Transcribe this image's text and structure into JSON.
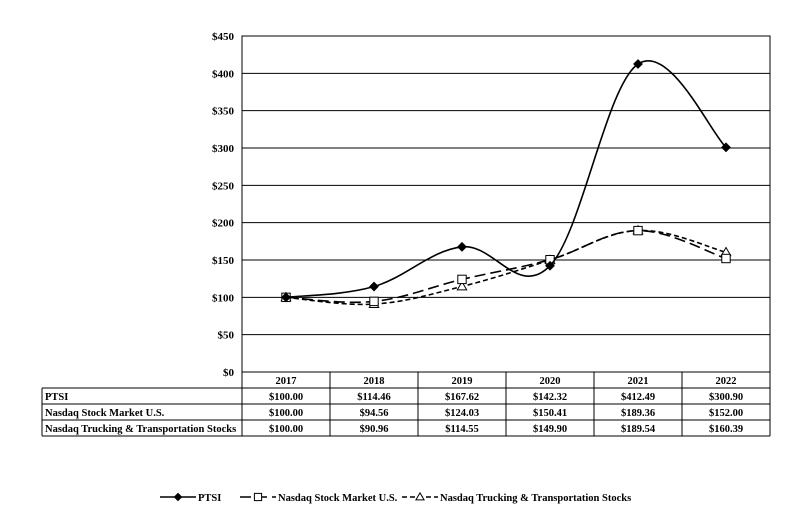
{
  "chart_data": {
    "type": "line",
    "categories": [
      "2017",
      "2018",
      "2019",
      "2020",
      "2021",
      "2022"
    ],
    "series": [
      {
        "name": "PTSI",
        "values": [
          100.0,
          114.46,
          167.62,
          142.32,
          412.49,
          300.9
        ],
        "labels": [
          "$100.00",
          "$114.46",
          "$167.62",
          "$142.32",
          "$412.49",
          "$300.90"
        ],
        "marker": "filled-diamond",
        "dash": "solid"
      },
      {
        "name": "Nasdaq Stock Market U.S.",
        "values": [
          100.0,
          94.56,
          124.03,
          150.41,
          189.36,
          152.0
        ],
        "labels": [
          "$100.00",
          "$94.56",
          "$124.03",
          "$150.41",
          "$189.36",
          "$152.00"
        ],
        "marker": "open-square",
        "dash": "long-dash"
      },
      {
        "name": "Nasdaq Trucking & Transportation Stocks",
        "values": [
          100.0,
          90.96,
          114.55,
          149.9,
          189.54,
          160.39
        ],
        "labels": [
          "$100.00",
          "$90.96",
          "$114.55",
          "$149.90",
          "$189.54",
          "$160.39"
        ],
        "marker": "open-triangle",
        "dash": "short-dash"
      }
    ],
    "y_ticks": [
      "$0",
      "$50",
      "$100",
      "$150",
      "$200",
      "$250",
      "$300",
      "$350",
      "$400",
      "$450"
    ],
    "ylim": [
      0,
      450
    ],
    "grid": true,
    "legend": "bottom",
    "title": "",
    "xlabel": "",
    "ylabel": "",
    "colors": {
      "line": "#000000",
      "grid": "#000000",
      "background": "#ffffff"
    }
  }
}
